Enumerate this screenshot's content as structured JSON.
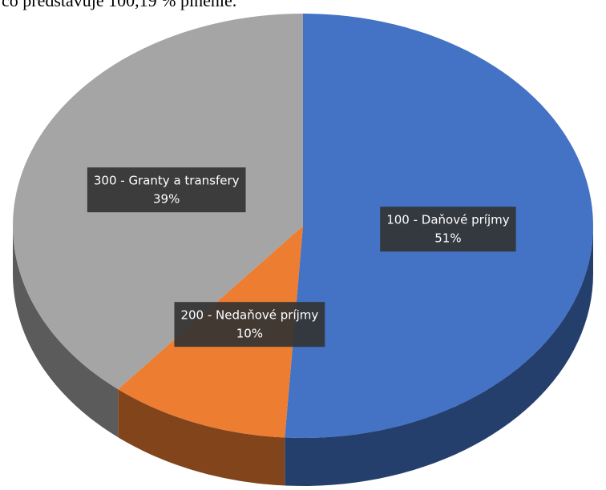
{
  "chart_data": {
    "type": "pie",
    "annotation": "čo predstavuje 100,19 % plnenie.",
    "categories": [
      "100 - Daňové príjmy",
      "200 - Nedaňové príjmy",
      "300 - Granty a transfery"
    ],
    "values": [
      51,
      10,
      39
    ],
    "value_labels": [
      "51%",
      "10%",
      "39%"
    ],
    "colors": [
      "#4472c4",
      "#ed7d31",
      "#a5a5a5"
    ]
  }
}
